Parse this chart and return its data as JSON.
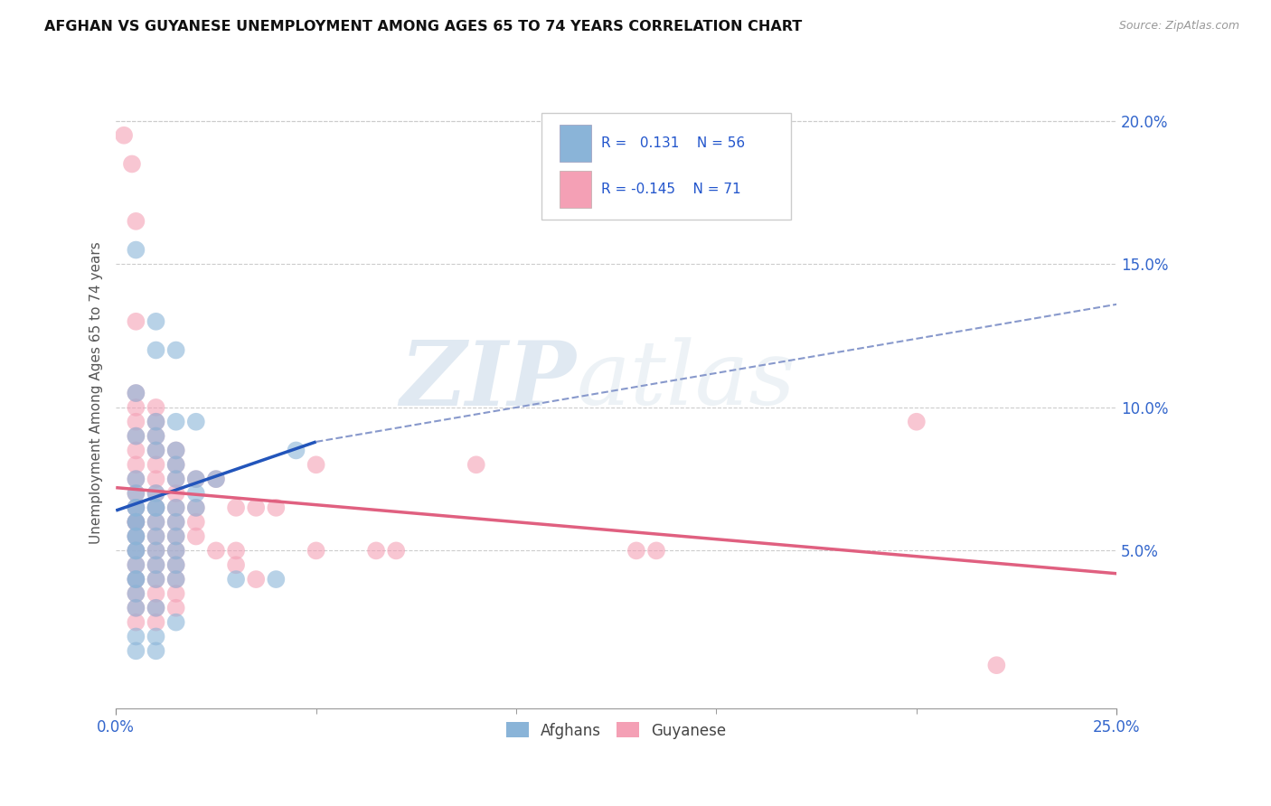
{
  "title": "AFGHAN VS GUYANESE UNEMPLOYMENT AMONG AGES 65 TO 74 YEARS CORRELATION CHART",
  "source": "Source: ZipAtlas.com",
  "ylabel": "Unemployment Among Ages 65 to 74 years",
  "xlim": [
    0.0,
    0.25
  ],
  "ylim": [
    -0.005,
    0.215
  ],
  "ytick_vals": [
    0.05,
    0.1,
    0.15,
    0.2
  ],
  "ytick_labels": [
    "5.0%",
    "10.0%",
    "15.0%",
    "20.0%"
  ],
  "xtick_left_label": "0.0%",
  "xtick_right_label": "25.0%",
  "afghan_color": "#8ab4d8",
  "guyanese_color": "#f4a0b5",
  "afghan_line_color": "#2255bb",
  "guyanese_line_color": "#e06080",
  "dashed_line_color": "#8899cc",
  "watermark_zip": "ZIP",
  "watermark_atlas": "atlas",
  "legend_entries": [
    "Afghans",
    "Guyanese"
  ],
  "afghan_line_x": [
    0.0,
    0.05
  ],
  "afghan_line_y": [
    0.064,
    0.088
  ],
  "dashed_line_x": [
    0.05,
    0.25
  ],
  "dashed_line_y": [
    0.088,
    0.136
  ],
  "guyanese_line_x": [
    0.0,
    0.25
  ],
  "guyanese_line_y": [
    0.072,
    0.042
  ],
  "afghan_points": [
    [
      0.005,
      0.155
    ],
    [
      0.005,
      0.105
    ],
    [
      0.005,
      0.09
    ],
    [
      0.005,
      0.075
    ],
    [
      0.005,
      0.07
    ],
    [
      0.005,
      0.065
    ],
    [
      0.005,
      0.065
    ],
    [
      0.005,
      0.06
    ],
    [
      0.005,
      0.06
    ],
    [
      0.005,
      0.055
    ],
    [
      0.005,
      0.055
    ],
    [
      0.005,
      0.05
    ],
    [
      0.005,
      0.05
    ],
    [
      0.005,
      0.045
    ],
    [
      0.005,
      0.04
    ],
    [
      0.005,
      0.04
    ],
    [
      0.005,
      0.035
    ],
    [
      0.005,
      0.03
    ],
    [
      0.005,
      0.02
    ],
    [
      0.005,
      0.015
    ],
    [
      0.01,
      0.13
    ],
    [
      0.01,
      0.12
    ],
    [
      0.01,
      0.095
    ],
    [
      0.01,
      0.09
    ],
    [
      0.01,
      0.085
    ],
    [
      0.01,
      0.07
    ],
    [
      0.01,
      0.065
    ],
    [
      0.01,
      0.065
    ],
    [
      0.01,
      0.06
    ],
    [
      0.01,
      0.055
    ],
    [
      0.01,
      0.05
    ],
    [
      0.01,
      0.045
    ],
    [
      0.01,
      0.04
    ],
    [
      0.01,
      0.03
    ],
    [
      0.01,
      0.02
    ],
    [
      0.01,
      0.015
    ],
    [
      0.015,
      0.12
    ],
    [
      0.015,
      0.095
    ],
    [
      0.015,
      0.085
    ],
    [
      0.015,
      0.08
    ],
    [
      0.015,
      0.075
    ],
    [
      0.015,
      0.065
    ],
    [
      0.015,
      0.06
    ],
    [
      0.015,
      0.055
    ],
    [
      0.015,
      0.05
    ],
    [
      0.015,
      0.045
    ],
    [
      0.015,
      0.04
    ],
    [
      0.015,
      0.025
    ],
    [
      0.02,
      0.095
    ],
    [
      0.02,
      0.075
    ],
    [
      0.02,
      0.07
    ],
    [
      0.02,
      0.065
    ],
    [
      0.025,
      0.075
    ],
    [
      0.03,
      0.04
    ],
    [
      0.04,
      0.04
    ],
    [
      0.045,
      0.085
    ]
  ],
  "guyanese_points": [
    [
      0.002,
      0.195
    ],
    [
      0.004,
      0.185
    ],
    [
      0.005,
      0.165
    ],
    [
      0.005,
      0.13
    ],
    [
      0.005,
      0.105
    ],
    [
      0.005,
      0.1
    ],
    [
      0.005,
      0.095
    ],
    [
      0.005,
      0.09
    ],
    [
      0.005,
      0.085
    ],
    [
      0.005,
      0.08
    ],
    [
      0.005,
      0.075
    ],
    [
      0.005,
      0.07
    ],
    [
      0.005,
      0.065
    ],
    [
      0.005,
      0.06
    ],
    [
      0.005,
      0.06
    ],
    [
      0.005,
      0.055
    ],
    [
      0.005,
      0.05
    ],
    [
      0.005,
      0.045
    ],
    [
      0.005,
      0.04
    ],
    [
      0.005,
      0.035
    ],
    [
      0.005,
      0.03
    ],
    [
      0.005,
      0.025
    ],
    [
      0.01,
      0.1
    ],
    [
      0.01,
      0.095
    ],
    [
      0.01,
      0.09
    ],
    [
      0.01,
      0.085
    ],
    [
      0.01,
      0.08
    ],
    [
      0.01,
      0.075
    ],
    [
      0.01,
      0.07
    ],
    [
      0.01,
      0.065
    ],
    [
      0.01,
      0.06
    ],
    [
      0.01,
      0.055
    ],
    [
      0.01,
      0.05
    ],
    [
      0.01,
      0.045
    ],
    [
      0.01,
      0.04
    ],
    [
      0.01,
      0.035
    ],
    [
      0.01,
      0.03
    ],
    [
      0.01,
      0.025
    ],
    [
      0.015,
      0.085
    ],
    [
      0.015,
      0.08
    ],
    [
      0.015,
      0.075
    ],
    [
      0.015,
      0.07
    ],
    [
      0.015,
      0.065
    ],
    [
      0.015,
      0.06
    ],
    [
      0.015,
      0.055
    ],
    [
      0.015,
      0.05
    ],
    [
      0.015,
      0.045
    ],
    [
      0.015,
      0.04
    ],
    [
      0.015,
      0.035
    ],
    [
      0.015,
      0.03
    ],
    [
      0.02,
      0.075
    ],
    [
      0.02,
      0.065
    ],
    [
      0.02,
      0.06
    ],
    [
      0.02,
      0.055
    ],
    [
      0.025,
      0.075
    ],
    [
      0.025,
      0.05
    ],
    [
      0.03,
      0.065
    ],
    [
      0.03,
      0.05
    ],
    [
      0.03,
      0.045
    ],
    [
      0.035,
      0.065
    ],
    [
      0.035,
      0.04
    ],
    [
      0.04,
      0.065
    ],
    [
      0.05,
      0.08
    ],
    [
      0.05,
      0.05
    ],
    [
      0.065,
      0.05
    ],
    [
      0.07,
      0.05
    ],
    [
      0.09,
      0.08
    ],
    [
      0.13,
      0.05
    ],
    [
      0.135,
      0.05
    ],
    [
      0.2,
      0.095
    ],
    [
      0.22,
      0.01
    ]
  ]
}
